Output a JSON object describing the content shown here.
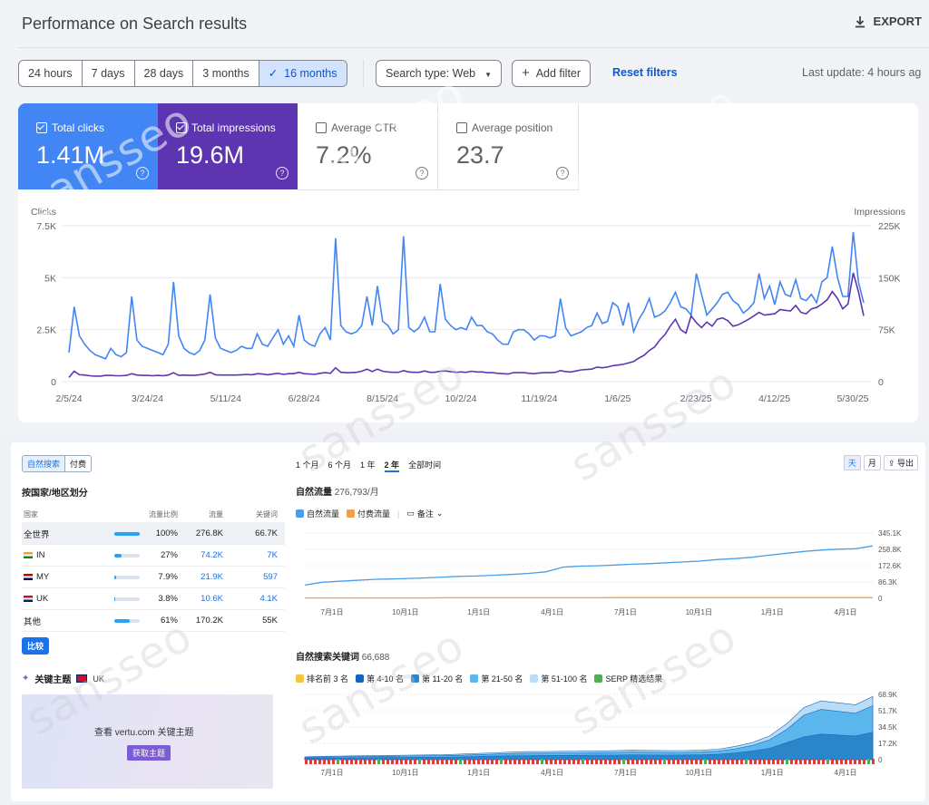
{
  "header": {
    "title": "Performance on Search results",
    "export_label": "EXPORT"
  },
  "filters": {
    "ranges": [
      "24 hours",
      "7 days",
      "28 days",
      "3 months",
      "16 months"
    ],
    "selected": "16 months",
    "search_type": "Search type: Web",
    "add_filter": "Add filter",
    "reset": "Reset filters",
    "last_update": "Last update: 4 hours ag"
  },
  "metrics": {
    "clicks": {
      "label": "Total clicks",
      "value": "1.41M",
      "checked": true,
      "color": "#4285f4"
    },
    "impressions": {
      "label": "Total impressions",
      "value": "19.6M",
      "checked": true,
      "color": "#5e35b1"
    },
    "ctr": {
      "label": "Average CTR",
      "value": "7.2%",
      "checked": false
    },
    "position": {
      "label": "Average position",
      "value": "23.7",
      "checked": false
    }
  },
  "chart_data": [
    {
      "type": "line",
      "left_axis_label": "Clicks",
      "right_axis_label": "Impressions",
      "y_left_ticks": [
        "7.5K",
        "5K",
        "2.5K",
        "0"
      ],
      "y_right_ticks": [
        "225K",
        "150K",
        "75K",
        "0"
      ],
      "ylim_left": [
        0,
        7500
      ],
      "ylim_right": [
        0,
        225000
      ],
      "x_ticks": [
        "2/5/24",
        "3/24/24",
        "5/11/24",
        "6/28/24",
        "8/15/24",
        "10/2/24",
        "11/19/24",
        "1/6/25",
        "2/23/25",
        "4/12/25",
        "5/30/25"
      ],
      "series": [
        {
          "name": "Clicks",
          "color": "#4285f4",
          "axis": "left",
          "values": [
            1400,
            3600,
            2200,
            1800,
            1500,
            1300,
            1200,
            1100,
            1600,
            1300,
            1200,
            1400,
            4100,
            2000,
            1700,
            1600,
            1500,
            1400,
            1300,
            1800,
            4800,
            2200,
            1600,
            1400,
            1300,
            1500,
            2000,
            4200,
            2100,
            1600,
            1500,
            1400,
            1500,
            1700,
            1600,
            1600,
            2300,
            1800,
            1700,
            2100,
            2500,
            1800,
            2200,
            1700,
            3200,
            2000,
            1800,
            1700,
            2300,
            2600,
            2000,
            6900,
            2700,
            2400,
            2300,
            2400,
            2700,
            4100,
            2700,
            4600,
            2900,
            2700,
            2300,
            2500,
            7000,
            2600,
            2400,
            2600,
            3100,
            2400,
            2400,
            4700,
            3000,
            2700,
            2500,
            2600,
            2500,
            3100,
            2700,
            2700,
            2400,
            2300,
            2000,
            1800,
            1800,
            2400,
            2500,
            2500,
            2300,
            2000,
            2200,
            2200,
            2100,
            2200,
            4000,
            2600,
            2200,
            2300,
            2400,
            2600,
            2700,
            3300,
            2800,
            2900,
            3800,
            3600,
            2700,
            3800,
            2400,
            3000,
            3400,
            4000,
            3100,
            3200,
            3400,
            3800,
            4300,
            3600,
            3500,
            3200,
            5200,
            4200,
            3200,
            3500,
            3800,
            4200,
            4300,
            3900,
            3700,
            3300,
            3500,
            3800,
            5200,
            4000,
            4600,
            3700,
            4800,
            4200,
            4100,
            4900,
            4000,
            3900,
            4200,
            3800,
            4800,
            5000,
            6500,
            5000,
            4100,
            4100,
            7200,
            4800,
            3800
          ],
          "note": "approximate reading"
        },
        {
          "name": "Impressions",
          "color": "#5e35b1",
          "axis": "right",
          "values": [
            6000,
            15000,
            10000,
            9500,
            8500,
            8000,
            8000,
            9000,
            9000,
            8500,
            8500,
            9000,
            11500,
            9500,
            9000,
            9000,
            8500,
            9000,
            8500,
            9500,
            13000,
            9000,
            9500,
            9000,
            9000,
            10000,
            11000,
            13500,
            10000,
            9500,
            9500,
            9500,
            9500,
            10000,
            10500,
            10000,
            11500,
            11000,
            10000,
            11000,
            12000,
            10500,
            11500,
            11500,
            13500,
            11500,
            11000,
            10500,
            12000,
            13000,
            12000,
            20000,
            13500,
            13000,
            13000,
            13500,
            15000,
            18000,
            14500,
            18000,
            15000,
            14000,
            13500,
            13500,
            16000,
            14000,
            13500,
            13500,
            15500,
            13500,
            13500,
            15000,
            15500,
            14500,
            13500,
            14000,
            13500,
            15000,
            14000,
            14000,
            13000,
            13000,
            12000,
            11500,
            11000,
            13000,
            13000,
            13000,
            12000,
            11500,
            12500,
            13000,
            13000,
            13500,
            16000,
            14500,
            14000,
            15500,
            17000,
            17500,
            18000,
            21000,
            20000,
            21000,
            23000,
            24000,
            25000,
            27000,
            29000,
            34000,
            38000,
            45000,
            50000,
            60000,
            68000,
            80000,
            90000,
            75000,
            70000,
            95000,
            85000,
            78000,
            86000,
            80000,
            90000,
            92000,
            88000,
            80000,
            82000,
            86000,
            90000,
            95000,
            100000,
            96000,
            97000,
            98000,
            104000,
            103000,
            102000,
            110000,
            100000,
            98000,
            105000,
            107000,
            112000,
            118000,
            130000,
            120000,
            105000,
            112000,
            157000,
            130000,
            95000
          ]
        }
      ]
    },
    {
      "type": "line",
      "title": "自然流量",
      "ylim": [
        0,
        345100
      ],
      "y_ticks": [
        "345.1K",
        "258.8K",
        "172.6K",
        "86.3K",
        "0"
      ],
      "x_ticks": [
        "7月1日",
        "10月1日",
        "1月1日",
        "4月1日",
        "7月1日",
        "10月1日",
        "1月1日",
        "4月1日"
      ],
      "series": [
        {
          "name": "自然流量",
          "color": "#4a9ee8",
          "values": [
            70000,
            85000,
            90000,
            95000,
            100000,
            102000,
            105000,
            108000,
            112000,
            116000,
            118000,
            122000,
            126000,
            132000,
            140000,
            165000,
            170000,
            172000,
            176000,
            180000,
            183000,
            188000,
            192000,
            197000,
            205000,
            210000,
            217000,
            228000,
            238000,
            248000,
            255000,
            260000,
            262000,
            276800
          ]
        },
        {
          "name": "付费流量",
          "color": "#f0a050",
          "values": [
            2000,
            2000,
            2000,
            2000,
            2000,
            2000,
            2000,
            2000,
            3000,
            3000,
            3000,
            3000,
            3000,
            3000,
            3000,
            3000,
            3000,
            3000,
            4000,
            4000,
            4000,
            4000,
            4000,
            4000,
            4000,
            4000,
            4000,
            4000,
            4000,
            4000,
            4000,
            4000,
            4000,
            4000
          ]
        }
      ]
    },
    {
      "type": "area",
      "title": "自然搜索关键词",
      "ylim": [
        0,
        68900
      ],
      "y_ticks": [
        "68.9K",
        "51.7K",
        "34.5K",
        "17.2K",
        "0"
      ],
      "x_ticks": [
        "7月1日",
        "10月1日",
        "1月1日",
        "4月1日",
        "7月1日",
        "10月1日",
        "1月1日",
        "4月1日"
      ],
      "series": [
        {
          "name": "第 51-100 名",
          "color": "#b9dcf7",
          "values": [
            3000,
            3500,
            3800,
            4000,
            4200,
            4500,
            4800,
            5000,
            5200,
            5800,
            6500,
            7200,
            8000,
            8500,
            8600,
            8800,
            9000,
            9200,
            9500,
            10000,
            9800,
            9500,
            9600,
            10000,
            11000,
            14000,
            18000,
            25000,
            38000,
            55000,
            62000,
            60000,
            58000,
            66700
          ]
        },
        {
          "name": "第 21-50 名",
          "color": "#5cb6ee",
          "values": [
            2500,
            2800,
            3000,
            3200,
            3400,
            3600,
            3800,
            4000,
            4200,
            4600,
            5200,
            5800,
            6400,
            6800,
            6900,
            7000,
            7200,
            7400,
            7600,
            8000,
            7800,
            7600,
            7700,
            8000,
            9000,
            11500,
            15000,
            21000,
            32000,
            47000,
            53000,
            51000,
            49000,
            57000
          ]
        },
        {
          "name": "第 11-20 名",
          "color": "#2a86c8",
          "values": [
            1500,
            1700,
            1800,
            2000,
            2100,
            2200,
            2400,
            2500,
            2600,
            2900,
            3300,
            3700,
            4000,
            4300,
            4400,
            4500,
            4600,
            4700,
            4800,
            5000,
            4900,
            4800,
            4900,
            5000,
            5600,
            7000,
            9000,
            12000,
            18000,
            24000,
            27000,
            26000,
            25000,
            29000
          ]
        }
      ],
      "legend": [
        "排名前 3 名",
        "第 4-10 名",
        "第 11-20 名",
        "第 21-50 名",
        "第 51-100 名",
        "SERP 精选结果"
      ]
    }
  ],
  "left_panel": {
    "tab_organic": "自然搜索",
    "tab_paid": "付费",
    "section": "按国家/地区划分",
    "headers": [
      "国家",
      "流量比例",
      "流量",
      "关键词"
    ],
    "rows": [
      {
        "country": "全世界",
        "pct": "100%",
        "traffic": "276.8K",
        "keywords": "66.7K",
        "share": 1.0
      },
      {
        "country": "IN",
        "pct": "27%",
        "traffic": "74.2K",
        "keywords": "7K",
        "share": 0.27
      },
      {
        "country": "MY",
        "pct": "7.9%",
        "traffic": "21.9K",
        "keywords": "597",
        "share": 0.079
      },
      {
        "country": "UK",
        "pct": "3.8%",
        "traffic": "10.6K",
        "keywords": "4.1K",
        "share": 0.038
      },
      {
        "country": "其他",
        "pct": "61%",
        "traffic": "170.2K",
        "keywords": "55K",
        "share": 0.61
      }
    ],
    "compare": "比较",
    "topics_title": "关键主题",
    "topics_region": "UK",
    "topics_text": "查看 vertu.com 关键主题",
    "topics_button": "获取主题"
  },
  "right_panel": {
    "ranges": [
      "1 个月",
      "6 个月",
      "1 年",
      "2 年",
      "全部时间"
    ],
    "selected": "2 年",
    "traffic_title": "自然流量",
    "traffic_value": "276,793/月",
    "legend_organic": "自然流量",
    "legend_paid": "付费流量",
    "note": "备注",
    "kw_title": "自然搜索关键词",
    "kw_value": "66,688",
    "day": "天",
    "month": "月",
    "export": "导出"
  },
  "watermark": "sansseo"
}
